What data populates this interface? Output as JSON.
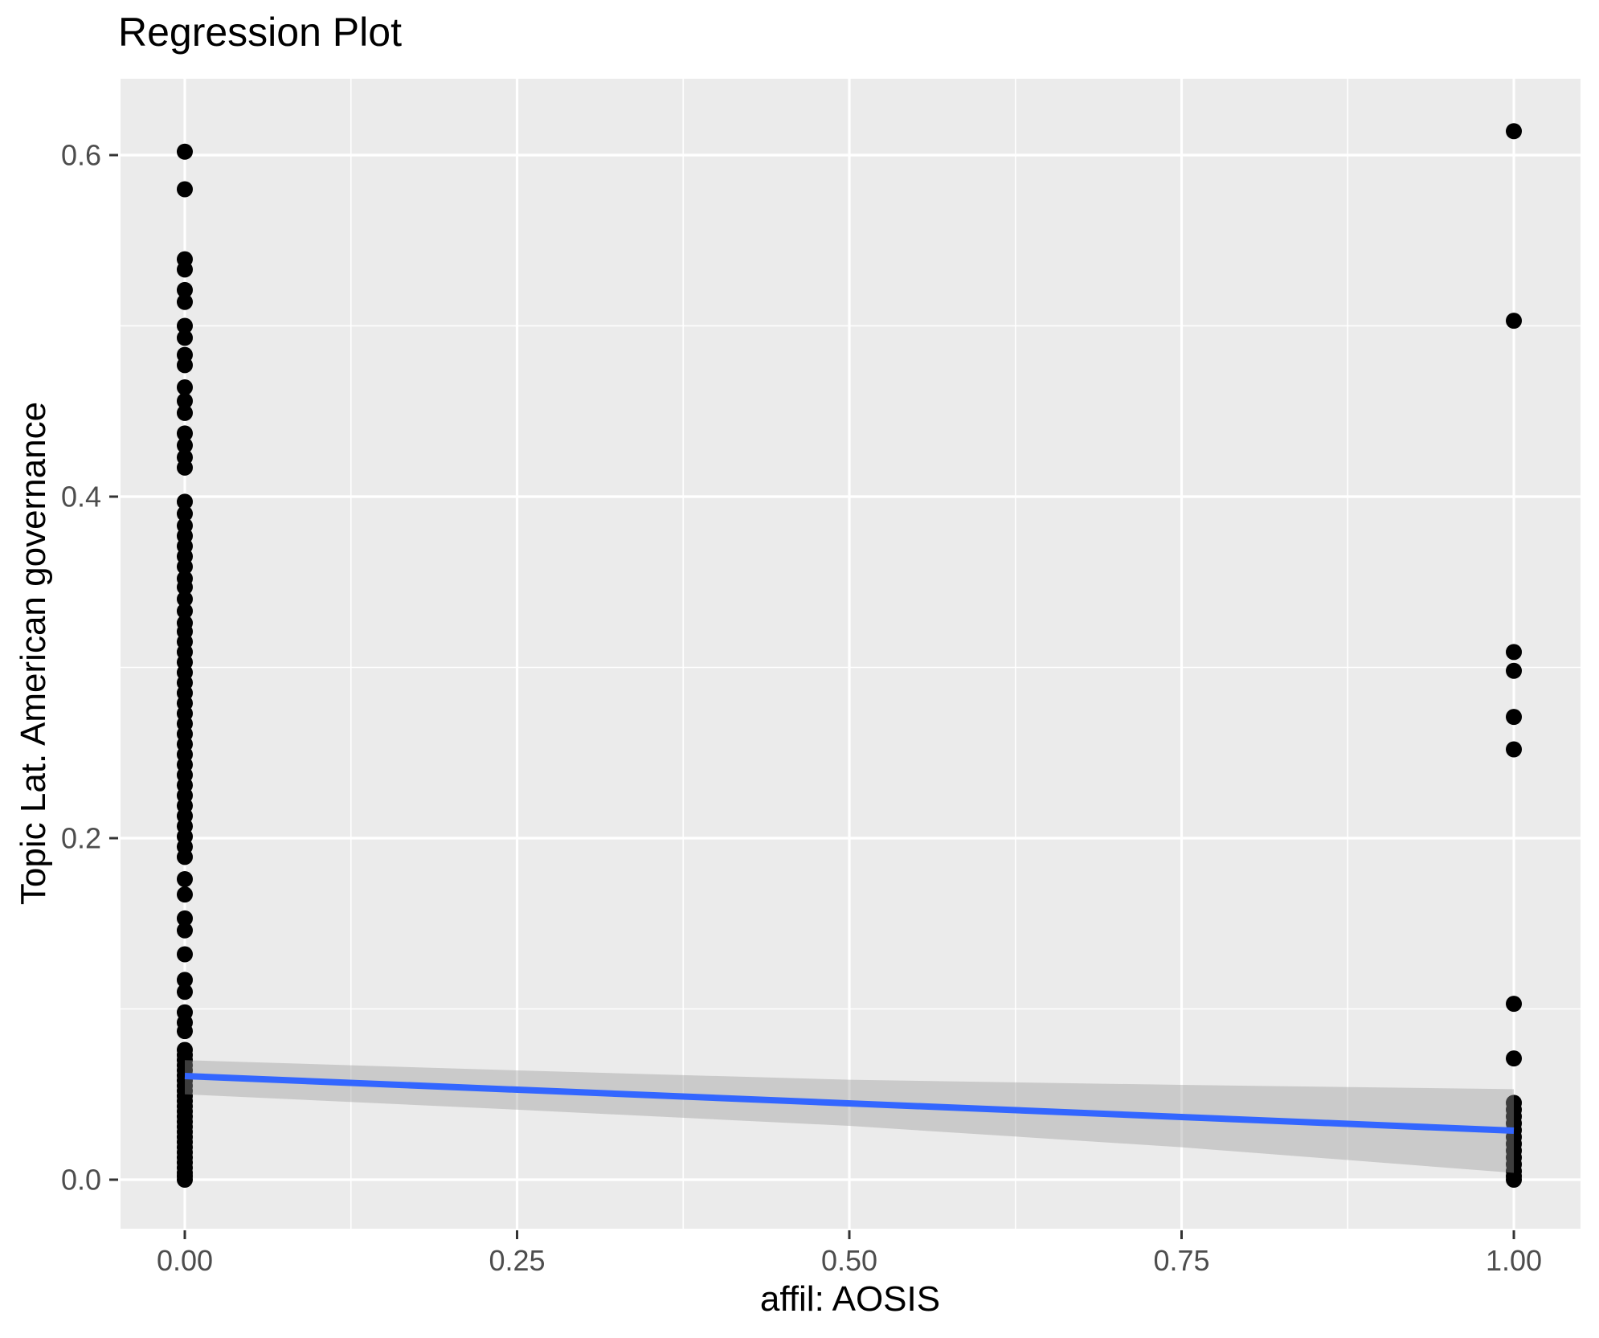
{
  "chart_data": {
    "type": "scatter",
    "title": "Regression Plot",
    "xlabel": "affil: AOSIS",
    "ylabel": "Topic Lat. American governance",
    "xlim": [
      -0.04836,
      1.05017
    ],
    "ylim": [
      -0.02871,
      0.64471
    ],
    "x_ticks": [
      0.0,
      0.25,
      0.5,
      0.75,
      1.0
    ],
    "x_tick_labels": [
      "0.00",
      "0.25",
      "0.50",
      "0.75",
      "1.00"
    ],
    "y_ticks": [
      0.0,
      0.2,
      0.4,
      0.6
    ],
    "y_tick_labels": [
      "0.0",
      "0.2",
      "0.4",
      "0.6"
    ],
    "x_minor_gridlines": [
      0.125,
      0.375,
      0.625,
      0.875
    ],
    "y_minor_gridlines": [
      0.1,
      0.3,
      0.5
    ],
    "grid_on": true,
    "legend_position": "none",
    "series": [
      {
        "name": "affil AOSIS = 0",
        "x": 0,
        "values": [
          0.602,
          0.58,
          0.539,
          0.533,
          0.521,
          0.514,
          0.5,
          0.493,
          0.483,
          0.477,
          0.464,
          0.456,
          0.449,
          0.437,
          0.43,
          0.423,
          0.417,
          0.397,
          0.39,
          0.383,
          0.377,
          0.371,
          0.365,
          0.359,
          0.352,
          0.347,
          0.34,
          0.333,
          0.326,
          0.321,
          0.315,
          0.309,
          0.303,
          0.297,
          0.291,
          0.285,
          0.279,
          0.273,
          0.267,
          0.261,
          0.255,
          0.249,
          0.243,
          0.237,
          0.231,
          0.225,
          0.219,
          0.213,
          0.207,
          0.201,
          0.195,
          0.189,
          0.176,
          0.167,
          0.153,
          0.146,
          0.132,
          0.117,
          0.11,
          0.098,
          0.092,
          0.087,
          0.076,
          0.073,
          0.07,
          0.067,
          0.064,
          0.061,
          0.058,
          0.055,
          0.052,
          0.049,
          0.046,
          0.043,
          0.04,
          0.037,
          0.034,
          0.031,
          0.028,
          0.025,
          0.022,
          0.019,
          0.016,
          0.013,
          0.01,
          0.007,
          0.004,
          0.002,
          0.0
        ]
      },
      {
        "name": "affil AOSIS = 1",
        "x": 1,
        "values": [
          0.614,
          0.503,
          0.309,
          0.298,
          0.271,
          0.252,
          0.103,
          0.071,
          0.045,
          0.041,
          0.037,
          0.033,
          0.029,
          0.025,
          0.021,
          0.017,
          0.013,
          0.009,
          0.005,
          0.002,
          0.0
        ]
      }
    ],
    "regression_line": {
      "x": [
        0,
        1
      ],
      "y": [
        0.0607,
        0.0287
      ]
    },
    "ci_band": {
      "x": [
        0,
        0.25,
        0.5,
        0.75,
        1
      ],
      "upper": [
        0.07,
        0.064,
        0.0585,
        0.0555,
        0.053
      ],
      "lower": [
        0.05,
        0.041,
        0.0315,
        0.019,
        0.004
      ]
    },
    "colors": {
      "panel_background": "#EBEBEB",
      "gridline": "#FFFFFF",
      "point": "#000000",
      "regression_line": "#3366FF",
      "ci_band": "rgba(153,153,153,0.4)",
      "tick_mark": "#333333",
      "tick_label": "#4D4D4D",
      "title_text": "#000000",
      "figure_background": "#FFFFFF"
    }
  }
}
